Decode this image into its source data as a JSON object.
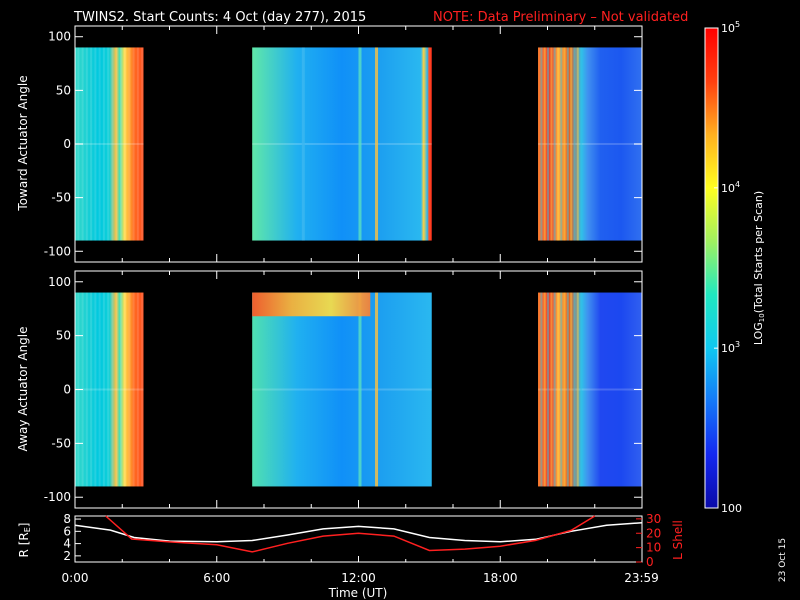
{
  "title": {
    "main": "TWINS2. Start Counts:  4 Oct (day 277), 2015",
    "note": "NOTE: Data Preliminary – Not validated"
  },
  "colors": {
    "note": "#ff2020",
    "lshell": "#ff2020",
    "radius": "#ffffff",
    "background": "#000000"
  },
  "stamp": "23 Oct 15",
  "chart_data": [
    {
      "type": "heatmap",
      "name": "toward",
      "ylabel": "Toward Actuator Angle",
      "ylim": [
        -110,
        110
      ],
      "yticks": [
        100,
        50,
        0,
        -50,
        -100
      ],
      "xlim": [
        0,
        24
      ],
      "data_ylim": [
        -90,
        90
      ],
      "blocks": [
        {
          "t0": 0.0,
          "t1": 2.9,
          "profile": [
            [
              "0.0",
              "#35d8c8"
            ],
            [
              "0.35",
              "#00c8e0"
            ],
            [
              "0.5",
              "#10d0d8"
            ],
            [
              "0.6",
              "#ffc040"
            ],
            [
              "0.65",
              "#40e0b8"
            ],
            [
              "0.72",
              "#ffe050"
            ],
            [
              "0.8",
              "#ffa030"
            ],
            [
              "0.86",
              "#ff6a20"
            ],
            [
              "1.0",
              "#ff5020"
            ]
          ]
        },
        {
          "t0": 7.5,
          "t1": 15.1,
          "profile": [
            [
              "0.0",
              "#60e8a8"
            ],
            [
              "0.25",
              "#20b0f0"
            ],
            [
              "0.5",
              "#1090f8"
            ],
            [
              "0.7",
              "#1c9ef0"
            ],
            [
              "0.94",
              "#2ab8f0"
            ],
            [
              "0.955",
              "#ffd040"
            ],
            [
              "0.975",
              "#2ab8f0"
            ],
            [
              "0.985",
              "#ff5020"
            ],
            [
              "1.0",
              "#ff3020"
            ]
          ]
        },
        {
          "t0": 19.6,
          "t1": 24.0,
          "profile": [
            [
              "0.0",
              "#ff8030"
            ],
            [
              "0.12",
              "#e84030"
            ],
            [
              "0.2",
              "#ffb040"
            ],
            [
              "0.3",
              "#e86020"
            ],
            [
              "0.42",
              "#30c0e8"
            ],
            [
              "0.48",
              "#4090f0"
            ],
            [
              "0.6",
              "#2060f0"
            ],
            [
              "0.8",
              "#1c58f0"
            ],
            [
              "1.0",
              "#3070f0"
            ]
          ]
        }
      ],
      "streaks": [
        {
          "t": 12.7,
          "color": "#ffc040"
        },
        {
          "t": 12.0,
          "color": "#5ae0c0"
        },
        {
          "t": 9.6,
          "color": "#3cb8f0"
        }
      ]
    },
    {
      "type": "heatmap",
      "name": "away",
      "ylabel": "Away Actuator Angle",
      "ylim": [
        -110,
        110
      ],
      "yticks": [
        100,
        50,
        0,
        -50,
        -100
      ],
      "xlim": [
        0,
        24
      ],
      "data_ylim": [
        -90,
        90
      ],
      "blocks": [
        {
          "t0": 0.0,
          "t1": 2.9,
          "profile": [
            [
              "0.0",
              "#35d8c8"
            ],
            [
              "0.35",
              "#00c8e0"
            ],
            [
              "0.5",
              "#10d0d8"
            ],
            [
              "0.6",
              "#ffc040"
            ],
            [
              "0.65",
              "#40e0b8"
            ],
            [
              "0.72",
              "#ffe050"
            ],
            [
              "0.8",
              "#ffa030"
            ],
            [
              "0.86",
              "#ff6a20"
            ],
            [
              "1.0",
              "#ff5020"
            ]
          ]
        },
        {
          "t0": 7.5,
          "t1": 15.1,
          "profile": [
            [
              "0.0",
              "#50e0b0"
            ],
            [
              "0.25",
              "#20b0f0"
            ],
            [
              "0.5",
              "#1090f8"
            ],
            [
              "0.7",
              "#1c9ef0"
            ],
            [
              "1.0",
              "#2ab8f0"
            ]
          ]
        },
        {
          "t0": 19.6,
          "t1": 24.0,
          "profile": [
            [
              "0.0",
              "#ff8030"
            ],
            [
              "0.12",
              "#e84030"
            ],
            [
              "0.2",
              "#ffb040"
            ],
            [
              "0.3",
              "#e86020"
            ],
            [
              "0.42",
              "#30c0e8"
            ],
            [
              "0.48",
              "#4090f0"
            ],
            [
              "0.6",
              "#2048f0"
            ],
            [
              "0.8",
              "#1c48f0"
            ],
            [
              "1.0",
              "#3060f0"
            ]
          ]
        }
      ],
      "hot_band": {
        "t0": 7.5,
        "t1": 12.5,
        "y0": 68,
        "y1": 90,
        "colors": [
          "#ff5020",
          "#ffb030",
          "#ffe040",
          "#ff8030"
        ]
      },
      "streaks": [
        {
          "t": 12.7,
          "color": "#ffc040"
        },
        {
          "t": 12.0,
          "color": "#5ae0c0"
        }
      ]
    },
    {
      "type": "line",
      "name": "orbit",
      "ylabel": "R [R",
      "ylabel_sub": "E",
      "ylabel_end": "]",
      "xlabel": "Time (UT)",
      "ylim": [
        1,
        8.5
      ],
      "yticks": [
        8,
        6,
        4,
        2
      ],
      "y2label": "L Shell",
      "y2lim": [
        0,
        32
      ],
      "y2ticks": [
        30,
        20,
        10,
        0
      ],
      "y2ticklabels": [
        "30",
        "20",
        "10",
        "0"
      ],
      "xticks": [
        0,
        6,
        12,
        18,
        23.98
      ],
      "xticklabels": [
        "0:00",
        "6:00",
        "12:00",
        "18:00",
        "23:59"
      ],
      "series": [
        {
          "color": "#ffffff",
          "axis": "left",
          "x": [
            0,
            1.5,
            2.5,
            4,
            6,
            7.5,
            9,
            10.5,
            12,
            13.5,
            15,
            16.5,
            18,
            19.5,
            21,
            22.5,
            24
          ],
          "y": [
            7.0,
            6.2,
            5.0,
            4.4,
            4.3,
            4.5,
            5.4,
            6.4,
            6.8,
            6.4,
            5.0,
            4.5,
            4.3,
            4.7,
            6.0,
            7.0,
            7.4
          ]
        },
        {
          "color": "#ff2020",
          "axis": "right",
          "x": [
            1.3,
            2.4,
            4,
            6,
            7.5,
            9,
            10.5,
            12,
            13.5,
            15,
            16.5,
            18,
            19.5,
            21,
            22
          ],
          "y": [
            32,
            16,
            14,
            12,
            7,
            13,
            18,
            20,
            18,
            8,
            9,
            11,
            15,
            22,
            32
          ]
        }
      ]
    }
  ],
  "colorbar": {
    "label_pre": "LOG",
    "label_sub": "10",
    "label_post": "(Total Starts per Scan)",
    "ticks": [
      {
        "base": "10",
        "exp": "5",
        "frac": 1.0
      },
      {
        "base": "10",
        "exp": "4",
        "frac": 0.667
      },
      {
        "base": "10",
        "exp": "3",
        "frac": 0.333
      },
      {
        "base": "100",
        "exp": "",
        "frac": 0.0
      }
    ],
    "colors": [
      "#0a0aa8",
      "#1428f0",
      "#1478f8",
      "#10c8f0",
      "#20e8c0",
      "#a0f060",
      "#ffff20",
      "#ffb020",
      "#ff4010",
      "#ff0000"
    ]
  }
}
